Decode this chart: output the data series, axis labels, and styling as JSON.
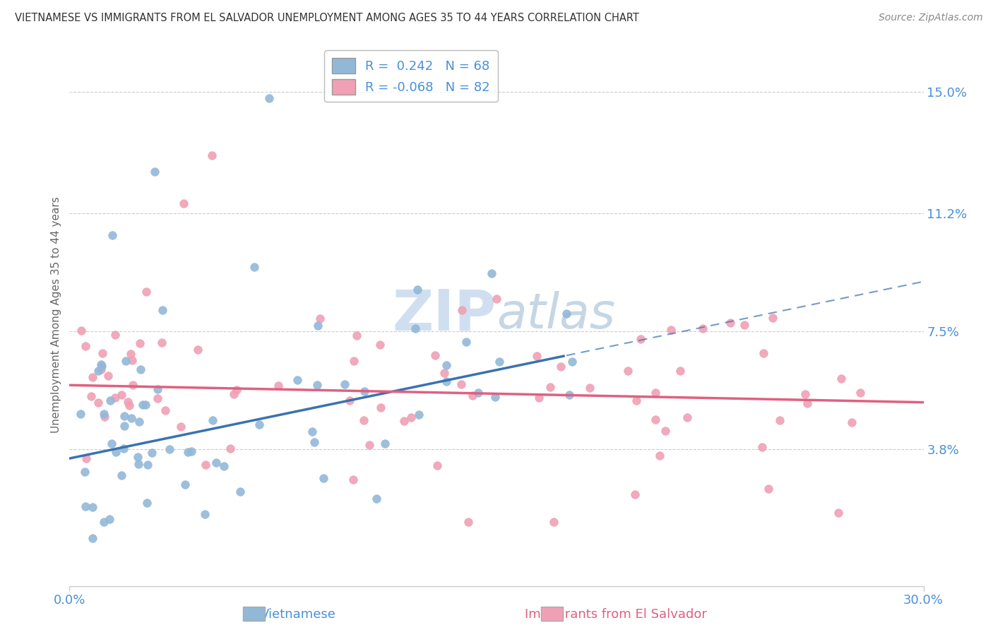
{
  "title": "VIETNAMESE VS IMMIGRANTS FROM EL SALVADOR UNEMPLOYMENT AMONG AGES 35 TO 44 YEARS CORRELATION CHART",
  "source": "Source: ZipAtlas.com",
  "ylabel": "Unemployment Among Ages 35 to 44 years",
  "y_ticks": [
    3.8,
    7.5,
    11.2,
    15.0
  ],
  "y_tick_labels": [
    "3.8%",
    "7.5%",
    "11.2%",
    "15.0%"
  ],
  "x_range": [
    0.0,
    30.0
  ],
  "y_range": [
    -0.5,
    16.5
  ],
  "vietnamese_R": 0.242,
  "vietnamese_N": 68,
  "salvador_R": -0.068,
  "salvador_N": 82,
  "blue_color": "#92b8d8",
  "pink_color": "#f0a0b5",
  "blue_line_color": "#3a72b0",
  "pink_line_color": "#e06080",
  "title_color": "#333333",
  "axis_label_color": "#4a90d9",
  "watermark_color": "#d0dff0",
  "legend_label_color": "#4a90d9",
  "legend_border_color": "#aaaaaa",
  "grid_color": "#cccccc",
  "bottom_spine_color": "#cccccc"
}
